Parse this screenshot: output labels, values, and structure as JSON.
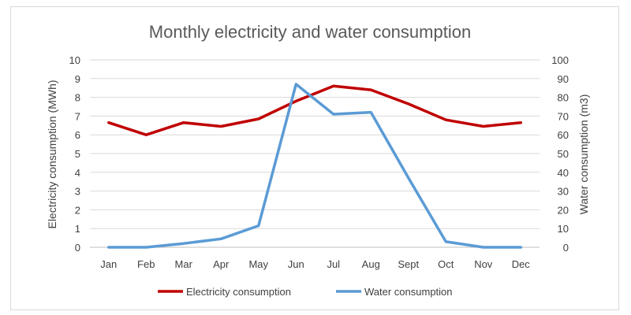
{
  "chart_data": {
    "type": "line",
    "title": "Monthly electricity and water consumption",
    "categories": [
      "Jan",
      "Feb",
      "Mar",
      "Apr",
      "May",
      "Jun",
      "Jul",
      "Aug",
      "Sept",
      "Oct",
      "Nov",
      "Dec"
    ],
    "y_left": {
      "label": "Electricity consumption (MWh)",
      "range": [
        0,
        10
      ],
      "ticks": [
        "0",
        "1",
        "2",
        "3",
        "4",
        "5",
        "6",
        "7",
        "8",
        "9",
        "10"
      ]
    },
    "y_right": {
      "label": "Water consumption (m3)",
      "range": [
        0,
        100
      ],
      "ticks": [
        "0",
        "10",
        "20",
        "30",
        "40",
        "50",
        "60",
        "70",
        "80",
        "90",
        "100"
      ]
    },
    "series": [
      {
        "name": "Electricity consumption",
        "axis": "left",
        "color": "#c00000",
        "values": [
          6.65,
          6.0,
          6.65,
          6.45,
          6.85,
          7.8,
          8.6,
          8.4,
          7.65,
          6.8,
          6.45,
          6.65
        ]
      },
      {
        "name": "Water consumption",
        "axis": "right",
        "color": "#5b9bd5",
        "values": [
          0,
          0,
          2,
          4.5,
          11.5,
          87,
          71,
          72,
          37,
          3,
          0,
          0
        ]
      }
    ],
    "legend_position": "bottom"
  }
}
